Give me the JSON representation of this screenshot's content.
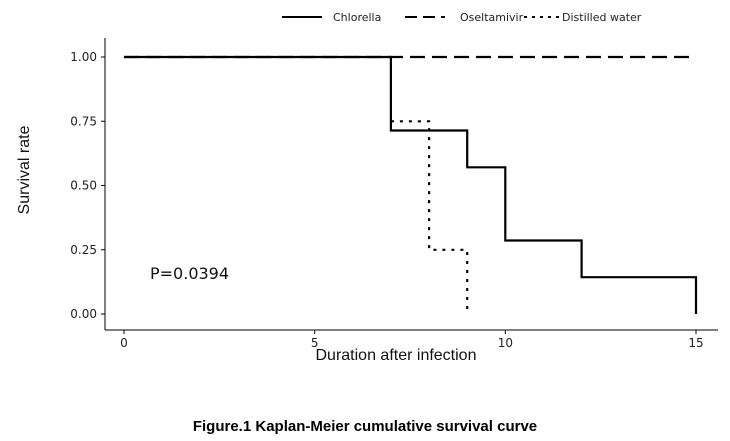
{
  "caption": "Figure.1   Kaplan-Meier cumulative survival curve",
  "chart_data": {
    "type": "line",
    "xlabel": "Duration after infection",
    "ylabel": "Survival rate",
    "xlim": [
      0,
      15
    ],
    "ylim": [
      0,
      1
    ],
    "x_ticks": [
      0,
      5,
      10,
      15
    ],
    "y_ticks": [
      0.0,
      0.25,
      0.5,
      0.75,
      1.0
    ],
    "x_tick_labels": [
      "0",
      "5",
      "10",
      "15"
    ],
    "y_tick_labels": [
      "0.00",
      "0.25",
      "0.50",
      "0.75",
      "1.00"
    ],
    "grid": false,
    "legend_position": "top",
    "annotation": "P=0.0394",
    "series": [
      {
        "name": "Chlorella",
        "style": "solid",
        "color": "#000000",
        "points": [
          [
            0,
            1.0
          ],
          [
            7,
            1.0
          ],
          [
            7,
            0.714
          ],
          [
            9,
            0.714
          ],
          [
            9,
            0.571
          ],
          [
            10,
            0.571
          ],
          [
            10,
            0.286
          ],
          [
            12,
            0.286
          ],
          [
            12,
            0.143
          ],
          [
            15,
            0.143
          ],
          [
            15,
            0.0
          ]
        ]
      },
      {
        "name": "Oseltamivir",
        "style": "dashed",
        "color": "#000000",
        "points": [
          [
            0,
            1.0
          ],
          [
            15,
            1.0
          ]
        ]
      },
      {
        "name": "Distilled water",
        "style": "dotted",
        "color": "#000000",
        "points": [
          [
            7,
            0.75
          ],
          [
            8,
            0.75
          ],
          [
            8,
            0.25
          ],
          [
            9,
            0.25
          ],
          [
            9,
            0.0
          ]
        ]
      }
    ]
  }
}
